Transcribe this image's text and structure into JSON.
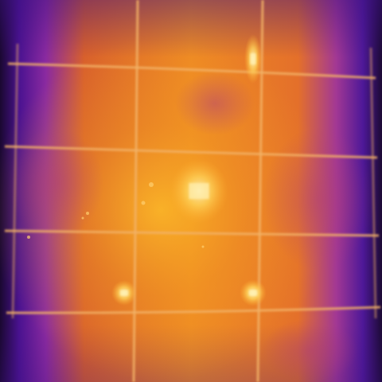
{
  "scene": {
    "type": "thermal-image",
    "palette": "ironbow",
    "subject": "solar-panel-cell-grid",
    "grid": {
      "columns": 3,
      "rows": 5
    }
  },
  "colors": {
    "background_cold": "#1a0830",
    "cold_edge": "#5a1aa8",
    "cool": "#9a2a9a",
    "warm": "#e06a2a",
    "hot": "#f5a820",
    "hotspot": "#fff0b0",
    "grid_line": "#f0b060"
  },
  "hotspots": [
    {
      "name": "hotspot-top-right-cell",
      "column": 3,
      "row": 1,
      "intensity": 0.85
    },
    {
      "name": "hotspot-center-cell",
      "column": 2,
      "row": 3,
      "intensity": 0.7
    },
    {
      "name": "hotspot-lower-left-cell",
      "column": 1,
      "row": 4,
      "intensity": 0.9
    },
    {
      "name": "hotspot-lower-right-cell",
      "column": 3,
      "row": 4,
      "intensity": 1.0
    }
  ]
}
